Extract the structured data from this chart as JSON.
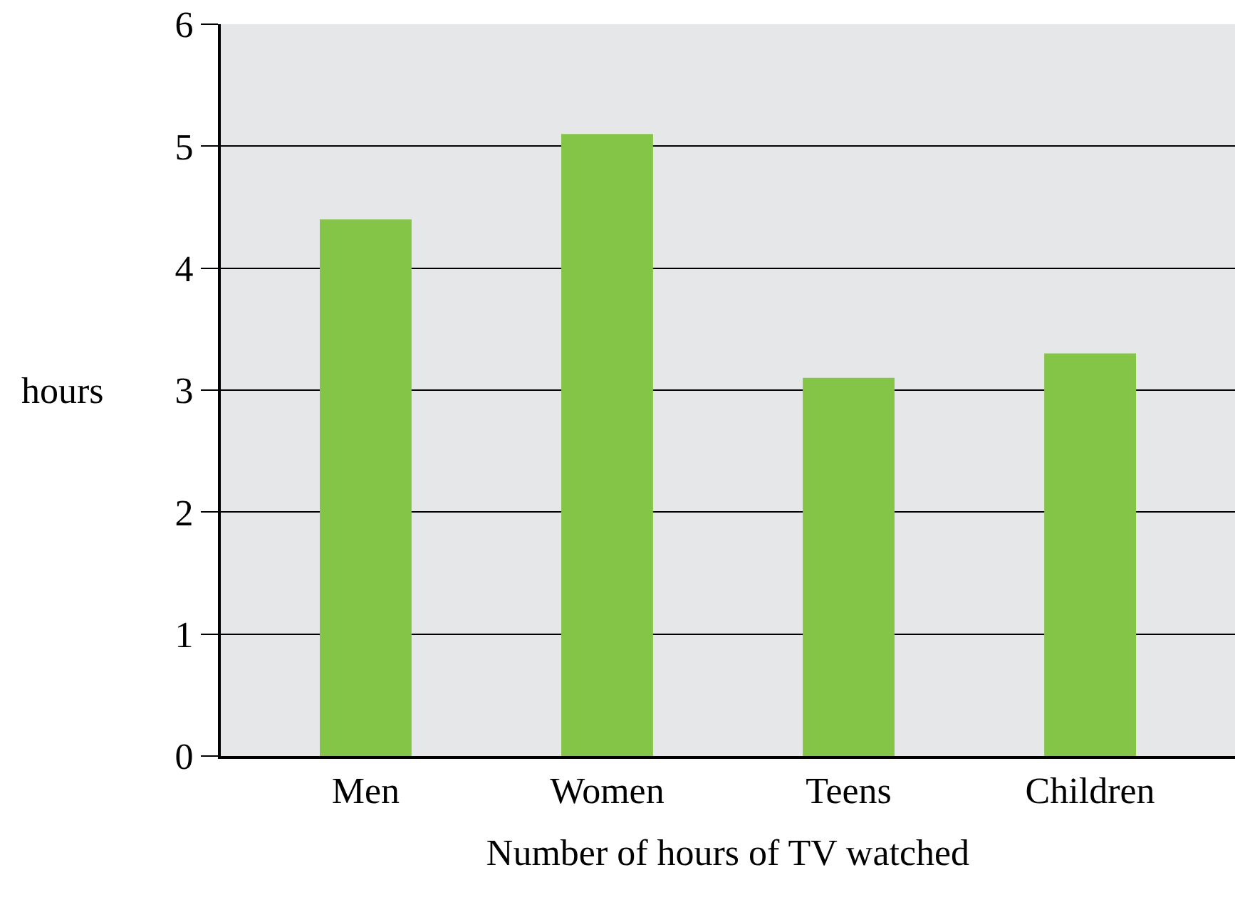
{
  "chart_data": {
    "type": "bar",
    "xlabel": "Number of hours of TV watched",
    "ylabel": "hours",
    "categories": [
      "Men",
      "Women",
      "Teens",
      "Children"
    ],
    "values": [
      4.4,
      5.1,
      3.1,
      3.3
    ],
    "color": "#84c446",
    "ylim": [
      0,
      6
    ],
    "yticks": [
      0,
      1,
      2,
      3,
      4,
      5,
      6
    ],
    "grid": "y"
  }
}
